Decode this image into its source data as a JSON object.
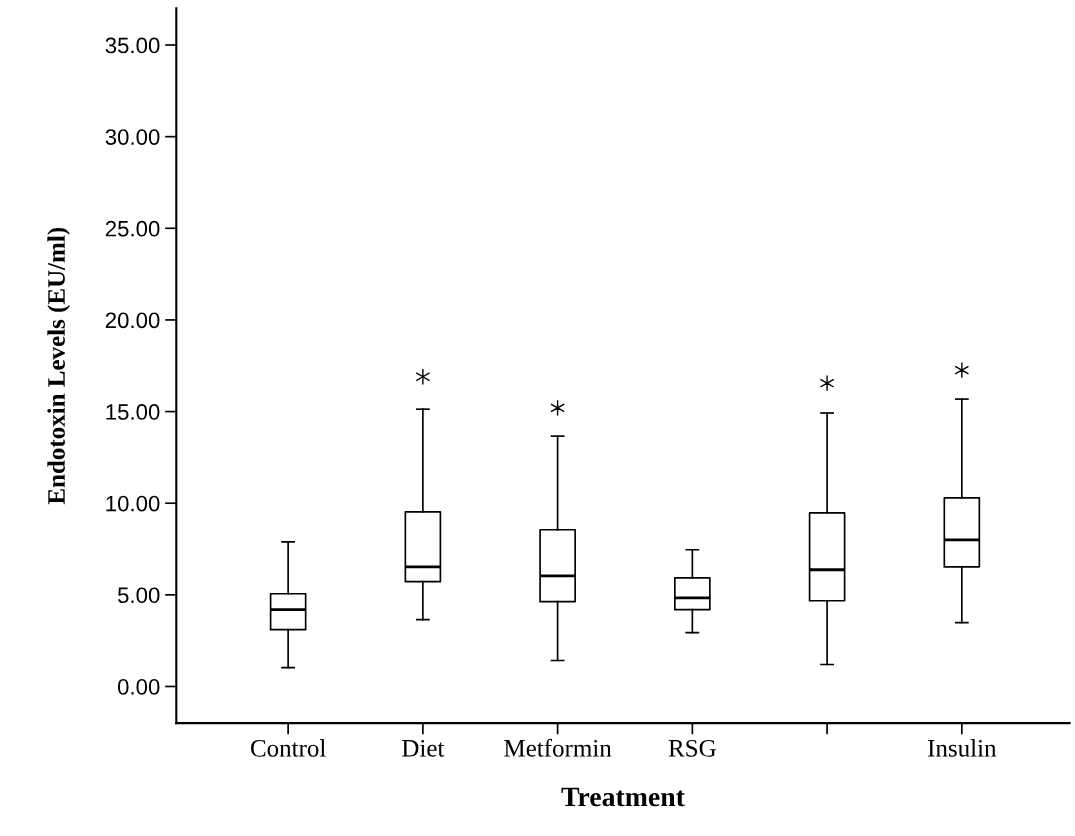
{
  "chart_data": {
    "type": "box",
    "xlabel": "Treatment",
    "ylabel": "Endotoxin Levels (EU/ml)",
    "categories": [
      "Control",
      "Diet",
      "Metformin",
      "RSG",
      null,
      "Insulin"
    ],
    "boxes": [
      {
        "low": 1.03,
        "q1": 3.1,
        "median": 4.19,
        "q3": 5.06,
        "high": 7.89
      },
      {
        "low": 3.65,
        "q1": 5.72,
        "median": 6.53,
        "q3": 9.53,
        "high": 15.13,
        "outliers": [
          16.9
        ]
      },
      {
        "low": 1.42,
        "q1": 4.63,
        "median": 6.04,
        "q3": 8.55,
        "high": 13.66,
        "outliers": [
          15.2
        ]
      },
      {
        "low": 2.94,
        "q1": 4.19,
        "median": 4.84,
        "q3": 5.93,
        "high": 7.46
      },
      {
        "low": 1.2,
        "q1": 4.68,
        "median": 6.37,
        "q3": 9.47,
        "high": 14.92,
        "outliers": [
          16.55
        ]
      },
      {
        "low": 3.48,
        "q1": 6.53,
        "median": 8.0,
        "q3": 10.29,
        "high": 15.68,
        "outliers": [
          17.26
        ]
      }
    ],
    "ylim": [
      -2,
      37
    ],
    "yticks": [
      {
        "value": 0,
        "label": "0.00"
      },
      {
        "value": 5,
        "label": "5.00"
      },
      {
        "value": 10,
        "label": "10.00"
      },
      {
        "value": 15,
        "label": "15.00"
      },
      {
        "value": 20,
        "label": "20.00"
      },
      {
        "value": 25,
        "label": "25.00"
      },
      {
        "value": 30,
        "label": "30.00"
      },
      {
        "value": 35,
        "label": "35.00"
      }
    ],
    "marker": "star",
    "grid": false,
    "legend": false
  }
}
